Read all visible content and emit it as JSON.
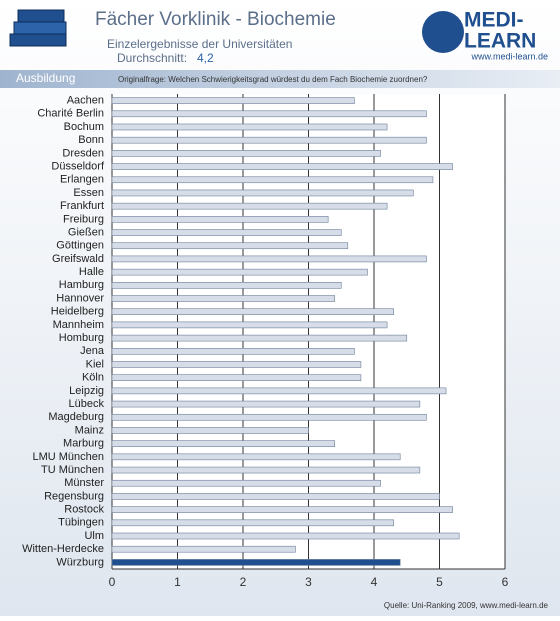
{
  "header": {
    "title": "Fächer Vorklinik - Biochemie",
    "subtitle": "Einzelergebnisse der Universitäten",
    "average_label": "Durchschnitt:",
    "average_value": "4,2",
    "section": "Ausbildung",
    "question": "Originalfrage: Welchen Schwierigkeitsgrad würdest du dem Fach Biochemie zuordnen?",
    "logo_top": "MEDI-",
    "logo_bottom": "LEARN",
    "url": "www.medi-learn.de"
  },
  "footer": {
    "source": "Quelle: Uni-Ranking 2009, www.medi-learn.de"
  },
  "chart_data": {
    "type": "hbar",
    "categories": [
      "Aachen",
      "Charité Berlin",
      "Bochum",
      "Bonn",
      "Dresden",
      "Düsseldorf",
      "Erlangen",
      "Essen",
      "Frankfurt",
      "Freiburg",
      "Gießen",
      "Göttingen",
      "Greifswald",
      "Halle",
      "Hamburg",
      "Hannover",
      "Heidelberg",
      "Mannheim",
      "Homburg",
      "Jena",
      "Kiel",
      "Köln",
      "Leipzig",
      "Lübeck",
      "Magdeburg",
      "Mainz",
      "Marburg",
      "LMU München",
      "TU München",
      "Münster",
      "Regensburg",
      "Rostock",
      "Tübingen",
      "Ulm",
      "Witten-Herdecke",
      "Würzburg"
    ],
    "values": [
      3.7,
      4.8,
      4.2,
      4.8,
      4.1,
      5.2,
      4.9,
      4.6,
      4.2,
      3.3,
      3.5,
      3.6,
      4.8,
      3.9,
      3.5,
      3.4,
      4.3,
      4.2,
      4.5,
      3.7,
      3.8,
      3.8,
      5.1,
      4.7,
      4.8,
      3.0,
      3.4,
      4.4,
      4.7,
      4.1,
      5.0,
      5.2,
      4.3,
      5.3,
      2.8,
      4.4
    ],
    "colors": [
      "#d6dde8",
      "#d6dde8",
      "#d6dde8",
      "#d6dde8",
      "#d6dde8",
      "#d6dde8",
      "#d6dde8",
      "#d6dde8",
      "#d6dde8",
      "#d6dde8",
      "#d6dde8",
      "#d6dde8",
      "#d6dde8",
      "#d6dde8",
      "#d6dde8",
      "#d6dde8",
      "#d6dde8",
      "#d6dde8",
      "#d6dde8",
      "#d6dde8",
      "#d6dde8",
      "#d6dde8",
      "#d6dde8",
      "#d6dde8",
      "#d6dde8",
      "#d6dde8",
      "#d6dde8",
      "#d6dde8",
      "#d6dde8",
      "#d6dde8",
      "#d6dde8",
      "#d6dde8",
      "#d6dde8",
      "#d6dde8",
      "#d6dde8",
      "#1f4f8f"
    ],
    "xlim": [
      0,
      6
    ],
    "xticks": [
      0,
      1,
      2,
      3,
      4,
      5,
      6
    ],
    "grid": true
  }
}
